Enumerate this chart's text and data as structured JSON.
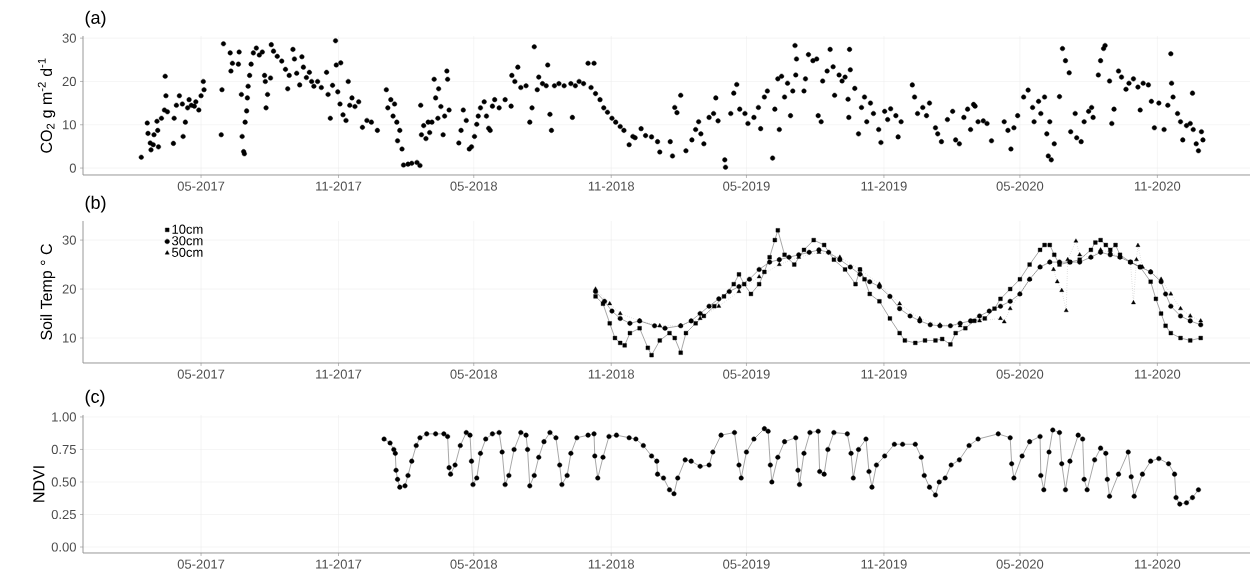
{
  "chart_data": [
    {
      "type": "scatter",
      "title": "(a)",
      "ylabel": "CO$_{2}$ g m$^{-2}$ d$^{-1}$",
      "marker": "circle",
      "color": "#000000",
      "grid": true,
      "xlim": [
        "2016-11-24",
        "2021-03-05"
      ],
      "xticks": [
        {
          "value": "2017-05-01",
          "label": "05-2017"
        },
        {
          "value": "2017-11-01",
          "label": "11-2017"
        },
        {
          "value": "2018-05-01",
          "label": "05-2018"
        },
        {
          "value": "2018-11-01",
          "label": "11-2018"
        },
        {
          "value": "2019-05-01",
          "label": "05-2019"
        },
        {
          "value": "2019-11-01",
          "label": "11-2019"
        },
        {
          "value": "2020-05-01",
          "label": "05-2020"
        },
        {
          "value": "2020-11-01",
          "label": "11-2020"
        }
      ],
      "ylim": [
        -1.6,
        30.5
      ],
      "yticks": [
        0,
        10,
        20,
        30
      ],
      "x": [
        "2017-02-10",
        "2017-02-18",
        "2017-02-19",
        "2017-02-22",
        "2017-02-23",
        "2017-02-26",
        "2017-02-27",
        "2017-03-03",
        "2017-03-04",
        "2017-03-05",
        "2017-03-09",
        "2017-03-13",
        "2017-03-14",
        "2017-03-15",
        "2017-03-17",
        "2017-03-25",
        "2017-03-26",
        "2017-03-29",
        "2017-04-02",
        "2017-04-06",
        "2017-04-07",
        "2017-04-10",
        "2017-04-13",
        "2017-04-15",
        "2017-04-18",
        "2017-04-22",
        "2017-04-24",
        "2017-04-28",
        "2017-05-01",
        "2017-05-04",
        "2017-05-05",
        "2017-05-28",
        "2017-05-29",
        "2017-05-31",
        "2017-06-09",
        "2017-06-10",
        "2017-06-12",
        "2017-06-20",
        "2017-06-21",
        "2017-06-24",
        "2017-06-25",
        "2017-06-27",
        "2017-06-28",
        "2017-06-29",
        "2017-07-01",
        "2017-07-02",
        "2017-07-03",
        "2017-07-05",
        "2017-07-07",
        "2017-07-10",
        "2017-07-14",
        "2017-07-18",
        "2017-07-22",
        "2017-07-25",
        "2017-07-26",
        "2017-07-27",
        "2017-07-29",
        "2017-08-02",
        "2017-08-03",
        "2017-08-06",
        "2017-08-11",
        "2017-08-17",
        "2017-08-22",
        "2017-08-25",
        "2017-08-27",
        "2017-09-01",
        "2017-09-03",
        "2017-09-06",
        "2017-09-10",
        "2017-09-13",
        "2017-09-15",
        "2017-09-19",
        "2017-09-23",
        "2017-09-26",
        "2017-09-29",
        "2017-10-04",
        "2017-10-09",
        "2017-10-16",
        "2017-10-18",
        "2017-10-21",
        "2017-10-24",
        "2017-10-28",
        "2017-10-29",
        "2017-10-31",
        "2017-11-03",
        "2017-11-04",
        "2017-11-07",
        "2017-11-11",
        "2017-11-14",
        "2017-11-16",
        "2017-11-19",
        "2017-11-23",
        "2017-11-28",
        "2017-12-03",
        "2017-12-09",
        "2017-12-15",
        "2017-12-23",
        "2018-01-04",
        "2018-01-06",
        "2018-01-10",
        "2018-01-13",
        "2018-01-15",
        "2018-01-18",
        "2018-01-19",
        "2018-01-22",
        "2018-01-25",
        "2018-01-27",
        "2018-02-02",
        "2018-02-07",
        "2018-02-14",
        "2018-02-18",
        "2018-02-19",
        "2018-02-20",
        "2018-02-23",
        "2018-02-26",
        "2018-03-01",
        "2018-03-03",
        "2018-03-06",
        "2018-03-09",
        "2018-03-11",
        "2018-03-14",
        "2018-03-15",
        "2018-03-18",
        "2018-03-21",
        "2018-03-23",
        "2018-03-26",
        "2018-03-27",
        "2018-03-29",
        "2018-04-11",
        "2018-04-14",
        "2018-04-17",
        "2018-04-21",
        "2018-04-25",
        "2018-04-28",
        "2018-05-02",
        "2018-05-05",
        "2018-05-07",
        "2018-05-10",
        "2018-05-15",
        "2018-05-18",
        "2018-05-21",
        "2018-05-23",
        "2018-05-26",
        "2018-05-29",
        "2018-06-04",
        "2018-06-12",
        "2018-06-20",
        "2018-06-21",
        "2018-06-25",
        "2018-06-29",
        "2018-07-03",
        "2018-07-10",
        "2018-07-15",
        "2018-07-18",
        "2018-07-21",
        "2018-07-25",
        "2018-07-27",
        "2018-08-01",
        "2018-08-06",
        "2018-08-08",
        "2018-08-11",
        "2018-08-13",
        "2018-08-17",
        "2018-08-23",
        "2018-08-30",
        "2018-09-08",
        "2018-09-10",
        "2018-09-14",
        "2018-09-19",
        "2018-09-25",
        "2018-10-01",
        "2018-10-05",
        "2018-10-09",
        "2018-10-11",
        "2018-10-17",
        "2018-10-22",
        "2018-10-27",
        "2018-11-02",
        "2018-11-07",
        "2018-11-13",
        "2018-11-18",
        "2018-11-25",
        "2018-11-30",
        "2018-12-03",
        "2018-12-11",
        "2018-12-17",
        "2018-12-25",
        "2019-01-02",
        "2019-01-05",
        "2019-01-19",
        "2019-01-22",
        "2019-01-25",
        "2019-01-28",
        "2019-02-02",
        "2019-02-09",
        "2019-02-17",
        "2019-02-22",
        "2019-02-26",
        "2019-03-01",
        "2019-03-05",
        "2019-03-12",
        "2019-03-18",
        "2019-03-21",
        "2019-03-24",
        "2019-04-02",
        "2019-04-03",
        "2019-04-10",
        "2019-04-14",
        "2019-04-18",
        "2019-04-22",
        "2019-04-29",
        "2019-05-03",
        "2019-05-11",
        "2019-05-17",
        "2019-05-20",
        "2019-05-25",
        "2019-05-29",
        "2019-06-05",
        "2019-06-08",
        "2019-06-12",
        "2019-06-14",
        "2019-06-17",
        "2019-06-21",
        "2019-06-25",
        "2019-06-29",
        "2019-07-02",
        "2019-07-05",
        "2019-07-06",
        "2019-07-07",
        "2019-07-17",
        "2019-07-19",
        "2019-07-23",
        "2019-07-29",
        "2019-08-03",
        "2019-08-05",
        "2019-08-09",
        "2019-08-11",
        "2019-08-17",
        "2019-08-21",
        "2019-08-25",
        "2019-08-27",
        "2019-09-02",
        "2019-09-06",
        "2019-09-10",
        "2019-09-14",
        "2019-09-15",
        "2019-09-16",
        "2019-09-17",
        "2019-09-23",
        "2019-09-28",
        "2019-10-02",
        "2019-10-06",
        "2019-10-09",
        "2019-10-14",
        "2019-10-18",
        "2019-10-25",
        "2019-10-28",
        "2019-11-02",
        "2019-11-06",
        "2019-11-10",
        "2019-11-17",
        "2019-11-20",
        "2019-11-24",
        "2019-12-09",
        "2019-12-12",
        "2019-12-16",
        "2019-12-23",
        "2019-12-28",
        "2020-01-01",
        "2020-01-09",
        "2020-01-12",
        "2020-01-17",
        "2020-01-25",
        "2020-02-01",
        "2020-02-05",
        "2020-02-10",
        "2020-02-16",
        "2020-02-21",
        "2020-02-25",
        "2020-02-29",
        "2020-03-02",
        "2020-03-06",
        "2020-03-13",
        "2020-03-18",
        "2020-03-24",
        "2020-04-10",
        "2020-04-15",
        "2020-04-19",
        "2020-04-23",
        "2020-04-28",
        "2020-05-06",
        "2020-05-12",
        "2020-05-18",
        "2020-05-20",
        "2020-05-26",
        "2020-05-29",
        "2020-06-03",
        "2020-06-06",
        "2020-06-08",
        "2020-06-10",
        "2020-06-12",
        "2020-06-16",
        "2020-06-23",
        "2020-06-27",
        "2020-07-01",
        "2020-07-06",
        "2020-07-08",
        "2020-07-14",
        "2020-07-16",
        "2020-07-22",
        "2020-07-26",
        "2020-08-01",
        "2020-08-05",
        "2020-08-07",
        "2020-08-14",
        "2020-08-17",
        "2020-08-21",
        "2020-08-23",
        "2020-08-29",
        "2020-09-01",
        "2020-09-04",
        "2020-09-10",
        "2020-09-14",
        "2020-09-20",
        "2020-09-24",
        "2020-09-30",
        "2020-10-06",
        "2020-10-09",
        "2020-10-13",
        "2020-10-20",
        "2020-10-24",
        "2020-10-28",
        "2020-11-03",
        "2020-11-10",
        "2020-11-15",
        "2020-11-19",
        "2020-11-20",
        "2020-11-22",
        "2020-11-28",
        "2020-12-02",
        "2020-12-05",
        "2020-12-10",
        "2020-12-15",
        "2020-12-18",
        "2020-12-19",
        "2020-12-23",
        "2020-12-26",
        "2020-12-30",
        "2021-01-01"
      ],
      "values": [
        2.5,
        10.4,
        8,
        5.8,
        4.2,
        5.4,
        7.7,
        10.8,
        8.7,
        4.9,
        11.5,
        13.4,
        21.2,
        16.7,
        13,
        5.7,
        11.5,
        14.5,
        16.7,
        14.8,
        7.3,
        10.6,
        13.9,
        15.8,
        14.5,
        14.3,
        15.3,
        13.4,
        16.7,
        20,
        18.1,
        7.7,
        18.1,
        28.7,
        26.6,
        22.4,
        24.2,
        24,
        26.8,
        17,
        7.3,
        3.8,
        3.3,
        10.6,
        13.2,
        16.2,
        18.9,
        21.4,
        24,
        26.6,
        27.7,
        26.1,
        26.8,
        21.4,
        20,
        13.9,
        17,
        20.8,
        28.5,
        27,
        25.8,
        24.7,
        22.8,
        18.3,
        21.4,
        27.4,
        25.2,
        21.9,
        19.2,
        25.7,
        23.3,
        20.9,
        22.1,
        20,
        18.9,
        20,
        18.6,
        22.1,
        17,
        11.5,
        19.1,
        29.4,
        23.8,
        17.6,
        14.8,
        24.3,
        12.3,
        11,
        20,
        14.5,
        16.2,
        14.2,
        15.3,
        9.4,
        11,
        10.6,
        8.7,
        18.1,
        13.9,
        15.8,
        12,
        14.8,
        10.6,
        6.3,
        8.7,
        4.4,
        0.7,
        0.9,
        1.1,
        1.3,
        0.6,
        14.5,
        7.7,
        9.8,
        6.8,
        10.6,
        8.2,
        10.6,
        20.5,
        16.2,
        11.5,
        18.3,
        14.2,
        7.7,
        12,
        22.4,
        20.5,
        13.4,
        5.8,
        8.7,
        13.4,
        11,
        4.4,
        4.9,
        7.3,
        10.1,
        12,
        13.9,
        15.3,
        12,
        9.2,
        8.7,
        14.3,
        15.8,
        13.9,
        15.8,
        14.3,
        21.4,
        20,
        23.3,
        18.6,
        19,
        10.6,
        13.9,
        28,
        18.1,
        21,
        19.5,
        19,
        23.8,
        12.4,
        8.7,
        19,
        19.5,
        19,
        19.5,
        11.7,
        19,
        20,
        19.5,
        24.2,
        18.6,
        24.2,
        17.2,
        15.8,
        13.9,
        12.9,
        11.5,
        10.6,
        9.6,
        8.7,
        5.4,
        7.3,
        7,
        9.1,
        7.5,
        7.2,
        6.1,
        3.7,
        6.1,
        2.8,
        14,
        12.8,
        16.8,
        4,
        6.5,
        8.9,
        10.7,
        7.9,
        5.6,
        11.7,
        12.6,
        16.2,
        10.9,
        1.9,
        0.2,
        12.6,
        17.3,
        19.3,
        13.6,
        12.6,
        10.3,
        11.7,
        14,
        9.1,
        16.4,
        17.8,
        2.3,
        13.6,
        20.6,
        8.9,
        21.2,
        16.4,
        19.6,
        12.1,
        17.8,
        28.3,
        21.5,
        25.2,
        17.8,
        20.6,
        26.2,
        24.8,
        25.2,
        12.1,
        10.7,
        20.1,
        22.4,
        27.4,
        23.4,
        16.8,
        21.5,
        20.1,
        21,
        15.9,
        11.7,
        27.4,
        22.7,
        18.4,
        7.9,
        14,
        16.4,
        10.7,
        15,
        12.6,
        8.9,
        5.9,
        13.1,
        11.2,
        13.7,
        12.1,
        7.2,
        10.7,
        19.2,
        16.4,
        12.6,
        14,
        12.1,
        15,
        9.3,
        7.9,
        6.1,
        11.2,
        13.1,
        6.5,
        5.6,
        11.7,
        13.6,
        8.9,
        14.7,
        14.3,
        10.7,
        10.9,
        10.3,
        6.3,
        10.7,
        8.7,
        4.4,
        9.3,
        12.1,
        16.4,
        18,
        14,
        10.7,
        15.4,
        12.6,
        16.4,
        7.9,
        2.8,
        10.7,
        1.9,
        5.6,
        16.5,
        27.6,
        24.8,
        22,
        8.4,
        12.6,
        7,
        6.1,
        10.7,
        13.1,
        14,
        11.7,
        21.5,
        24.8,
        27.6,
        28.3,
        20.1,
        10.3,
        13.6,
        22.4,
        21,
        18.2,
        19.6,
        20.6,
        18.7,
        13.4,
        19.6,
        19.2,
        15.4,
        9.3,
        15,
        8.9,
        14.5,
        26.4,
        19.6,
        16.4,
        12.6,
        10.7,
        6.5,
        9.8,
        10.3,
        17.3,
        8.9,
        5.6,
        4,
        8.4,
        6.5
      ]
    },
    {
      "type": "line",
      "title": "(b)",
      "ylabel": "Soil Temp ° C",
      "grid": true,
      "legend": "top left",
      "xlim": [
        "2016-11-24",
        "2021-03-05"
      ],
      "xticks": [
        {
          "value": "2017-05-01",
          "label": "05-2017"
        },
        {
          "value": "2017-11-01",
          "label": "11-2017"
        },
        {
          "value": "2018-05-01",
          "label": "05-2018"
        },
        {
          "value": "2018-11-01",
          "label": "11-2018"
        },
        {
          "value": "2019-05-01",
          "label": "05-2019"
        },
        {
          "value": "2019-11-01",
          "label": "11-2019"
        },
        {
          "value": "2020-05-01",
          "label": "05-2020"
        },
        {
          "value": "2020-11-01",
          "label": "11-2020"
        }
      ],
      "ylim": [
        4.9,
        33.9
      ],
      "yticks": [
        10,
        20,
        30
      ],
      "series": [
        {
          "name": "10cm",
          "color": "#000000",
          "marker": "square",
          "line_style": "solid",
          "x": [
            "2018-10-11",
            "2018-10-21",
            "2018-10-30",
            "2018-11-06",
            "2018-11-13",
            "2018-11-19",
            "2018-11-26",
            "2018-12-09",
            "2018-12-20",
            "2018-12-25",
            "2019-01-05",
            "2019-01-18",
            "2019-01-25",
            "2019-02-02",
            "2019-02-09",
            "2019-02-22",
            "2019-03-05",
            "2019-03-19",
            "2019-04-01",
            "2019-04-14",
            "2019-04-21",
            "2019-04-28",
            "2019-05-07",
            "2019-05-18",
            "2019-05-25",
            "2019-06-01",
            "2019-06-08",
            "2019-06-12",
            "2019-06-21",
            "2019-07-04",
            "2019-07-17",
            "2019-07-30",
            "2019-08-13",
            "2019-08-26",
            "2019-09-10",
            "2019-09-24",
            "2019-09-30",
            "2019-10-06",
            "2019-10-13",
            "2019-10-26",
            "2019-11-09",
            "2019-11-22",
            "2019-11-29",
            "2019-12-13",
            "2019-12-26",
            "2020-01-09",
            "2020-01-18",
            "2020-01-29",
            "2020-02-05",
            "2020-02-18",
            "2020-03-01",
            "2020-03-15",
            "2020-03-28",
            "2020-04-05",
            "2020-04-18",
            "2020-05-01",
            "2020-05-14",
            "2020-05-28",
            "2020-06-03",
            "2020-06-10",
            "2020-06-16",
            "2020-06-23",
            "2020-07-07",
            "2020-07-20",
            "2020-08-04",
            "2020-08-10",
            "2020-08-17",
            "2020-08-24",
            "2020-08-30",
            "2020-09-06",
            "2020-09-12",
            "2020-09-26",
            "2020-10-09",
            "2020-10-23",
            "2020-10-30",
            "2020-11-06",
            "2020-11-12",
            "2020-11-19",
            "2020-12-02",
            "2020-12-15",
            "2020-12-29"
          ],
          "values": [
            18.5,
            17,
            13,
            10,
            9,
            8.5,
            11,
            12,
            8,
            6.5,
            9.5,
            11,
            10,
            7,
            11,
            13,
            14.5,
            16.5,
            18.5,
            21,
            23,
            21,
            19,
            21,
            23.5,
            26.5,
            30,
            32,
            27,
            25,
            28,
            30,
            29,
            26,
            24,
            21,
            24,
            22,
            19,
            17.5,
            14,
            11,
            9.5,
            9,
            9.5,
            9.5,
            9.8,
            8.7,
            11,
            12,
            13.5,
            14,
            16,
            18,
            20,
            22,
            25,
            28,
            29,
            29,
            27,
            25,
            25.5,
            26,
            28,
            29.5,
            30,
            29,
            28,
            29,
            27,
            25.5,
            24.5,
            21.5,
            18,
            15,
            12.5,
            11,
            10,
            9.5,
            10
          ]
        },
        {
          "name": "30cm",
          "color": "#000000",
          "marker": "circle",
          "line_style": "solid",
          "x": [
            "2018-10-11",
            "2018-10-23",
            "2018-11-02",
            "2018-11-13",
            "2018-11-26",
            "2018-12-09",
            "2018-12-29",
            "2019-01-12",
            "2019-02-02",
            "2019-02-16",
            "2019-02-28",
            "2019-03-12",
            "2019-03-25",
            "2019-04-08",
            "2019-04-21",
            "2019-05-05",
            "2019-05-18",
            "2019-06-01",
            "2019-06-14",
            "2019-06-27",
            "2019-07-10",
            "2019-07-24",
            "2019-08-06",
            "2019-08-19",
            "2019-09-03",
            "2019-09-17",
            "2019-09-30",
            "2019-10-13",
            "2019-10-26",
            "2019-11-09",
            "2019-11-22",
            "2019-12-06",
            "2019-12-19",
            "2020-01-02",
            "2020-01-15",
            "2020-01-29",
            "2020-02-11",
            "2020-02-25",
            "2020-03-08",
            "2020-03-21",
            "2020-04-05",
            "2020-04-18",
            "2020-05-01",
            "2020-05-14",
            "2020-05-28",
            "2020-06-10",
            "2020-06-23",
            "2020-07-07",
            "2020-07-20",
            "2020-08-04",
            "2020-08-17",
            "2020-08-30",
            "2020-09-12",
            "2020-09-26",
            "2020-10-09",
            "2020-10-23",
            "2020-11-06",
            "2020-11-12",
            "2020-11-19",
            "2020-12-02",
            "2020-12-15",
            "2020-12-29"
          ],
          "values": [
            19.5,
            17.5,
            15.5,
            14,
            13,
            13.5,
            12.5,
            12,
            12.5,
            13.5,
            15,
            16.5,
            18,
            19.5,
            20.5,
            22,
            24,
            25.5,
            26,
            26.5,
            27,
            27.5,
            28,
            27.5,
            26,
            24.5,
            23,
            21.5,
            20.5,
            18.5,
            16,
            14.5,
            13.5,
            12.7,
            12.5,
            12.5,
            13,
            13.5,
            14.5,
            15.5,
            16.5,
            17.5,
            19,
            22,
            24.5,
            25.5,
            25.5,
            25.5,
            25.5,
            26.5,
            27.5,
            27,
            26.5,
            25.5,
            24.5,
            23.5,
            21.5,
            19,
            16.5,
            14.5,
            13.5,
            12.7
          ]
        },
        {
          "name": "50cm",
          "color": "#000000",
          "marker": "triangle",
          "line_style": "dotted",
          "x": [
            "2018-10-11",
            "2018-10-30",
            "2018-11-13",
            "2018-12-09",
            "2019-01-05",
            "2019-02-02",
            "2019-02-28",
            "2019-03-25",
            "2019-04-21",
            "2019-05-18",
            "2019-06-14",
            "2019-07-10",
            "2019-08-06",
            "2019-09-03",
            "2019-09-30",
            "2019-10-26",
            "2019-11-22",
            "2019-12-19",
            "2020-01-15",
            "2020-02-11",
            "2020-03-08",
            "2020-04-05",
            "2020-04-10",
            "2020-04-18",
            "2020-05-01",
            "2020-05-14",
            "2020-05-28",
            "2020-06-10",
            "2020-06-15",
            "2020-06-20",
            "2020-06-26",
            "2020-07-02",
            "2020-07-04",
            "2020-07-15",
            "2020-07-20",
            "2020-08-04",
            "2020-08-17",
            "2020-08-30",
            "2020-09-12",
            "2020-09-26",
            "2020-09-30",
            "2020-10-04",
            "2020-10-06",
            "2020-10-12",
            "2020-10-23",
            "2020-11-06",
            "2020-11-19",
            "2020-12-02",
            "2020-12-15",
            "2020-12-29"
          ],
          "values": [
            20,
            17,
            15,
            13.5,
            12.5,
            12.5,
            14,
            16.5,
            19.5,
            22.5,
            25,
            26.5,
            27.5,
            26.5,
            24,
            21,
            17,
            14,
            12.7,
            12.5,
            13.5,
            14,
            13.3,
            16,
            19,
            22,
            24.5,
            25.5,
            24,
            21.5,
            19.7,
            15.6,
            26,
            29.8,
            27,
            26.5,
            28,
            27.5,
            26.5,
            25.5,
            17.2,
            26,
            28.9,
            24.5,
            23.5,
            22,
            19,
            16,
            14.5,
            13.5
          ]
        }
      ]
    },
    {
      "type": "line",
      "title": "(c)",
      "ylabel": "NDVI",
      "marker": "circle",
      "color": "#000000",
      "grid": true,
      "xlim": [
        "2016-11-24",
        "2021-03-05"
      ],
      "xticks": [
        {
          "value": "2017-05-01",
          "label": "05-2017"
        },
        {
          "value": "2017-11-01",
          "label": "11-2017"
        },
        {
          "value": "2018-05-01",
          "label": "05-2018"
        },
        {
          "value": "2018-11-01",
          "label": "11-2018"
        },
        {
          "value": "2019-05-01",
          "label": "05-2019"
        },
        {
          "value": "2019-11-01",
          "label": "11-2019"
        },
        {
          "value": "2020-05-01",
          "label": "05-2020"
        },
        {
          "value": "2020-11-01",
          "label": "11-2020"
        }
      ],
      "ylim": [
        -0.046,
        1.015
      ],
      "yticks": [
        {
          "value": 0,
          "label": "0.00"
        },
        {
          "value": 0.25,
          "label": "0.25"
        },
        {
          "value": 0.5,
          "label": "0.50"
        },
        {
          "value": 0.75,
          "label": "0.75"
        },
        {
          "value": 1,
          "label": "1.00"
        }
      ],
      "x": [
        "2018-01-01",
        "2018-01-09",
        "2018-01-14",
        "2018-01-16",
        "2018-01-17",
        "2018-01-19",
        "2018-01-22",
        "2018-01-29",
        "2018-02-02",
        "2018-02-07",
        "2018-02-13",
        "2018-02-18",
        "2018-02-27",
        "2018-03-11",
        "2018-03-22",
        "2018-03-27",
        "2018-03-29",
        "2018-03-31",
        "2018-04-06",
        "2018-04-13",
        "2018-04-21",
        "2018-04-26",
        "2018-04-28",
        "2018-04-30",
        "2018-05-05",
        "2018-05-10",
        "2018-05-17",
        "2018-05-26",
        "2018-06-04",
        "2018-06-08",
        "2018-06-12",
        "2018-06-17",
        "2018-06-24",
        "2018-07-03",
        "2018-07-10",
        "2018-07-12",
        "2018-07-15",
        "2018-07-21",
        "2018-07-27",
        "2018-08-03",
        "2018-08-11",
        "2018-08-19",
        "2018-08-24",
        "2018-08-27",
        "2018-09-03",
        "2018-09-08",
        "2018-09-16",
        "2018-10-01",
        "2018-10-09",
        "2018-10-10",
        "2018-10-14",
        "2018-10-21",
        "2018-10-29",
        "2018-11-08",
        "2018-11-25",
        "2018-12-04",
        "2018-12-14",
        "2018-12-25",
        "2019-01-01",
        "2019-01-02",
        "2019-01-10",
        "2019-01-18",
        "2019-01-24",
        "2019-01-29",
        "2019-02-08",
        "2019-02-16",
        "2019-02-28",
        "2019-03-12",
        "2019-03-17",
        "2019-03-28",
        "2019-04-15",
        "2019-04-21",
        "2019-04-24",
        "2019-05-01",
        "2019-05-11",
        "2019-05-25",
        "2019-05-30",
        "2019-06-02",
        "2019-06-04",
        "2019-06-12",
        "2019-06-21",
        "2019-07-06",
        "2019-07-09",
        "2019-07-11",
        "2019-07-17",
        "2019-07-25",
        "2019-08-05",
        "2019-08-07",
        "2019-08-13",
        "2019-08-18",
        "2019-08-26",
        "2019-09-13",
        "2019-09-18",
        "2019-09-21",
        "2019-09-28",
        "2019-10-08",
        "2019-10-12",
        "2019-10-16",
        "2019-10-22",
        "2019-11-02",
        "2019-11-15",
        "2019-11-26",
        "2019-12-13",
        "2019-12-21",
        "2019-12-25",
        "2020-01-01",
        "2020-01-09",
        "2020-01-14",
        "2020-01-22",
        "2020-01-30",
        "2020-02-10",
        "2020-02-23",
        "2020-03-06",
        "2020-04-02",
        "2020-04-18",
        "2020-04-20",
        "2020-04-23",
        "2020-05-04",
        "2020-05-14",
        "2020-05-28",
        "2020-05-29",
        "2020-06-02",
        "2020-06-09",
        "2020-06-14",
        "2020-06-23",
        "2020-06-26",
        "2020-07-01",
        "2020-07-07",
        "2020-07-18",
        "2020-07-24",
        "2020-07-26",
        "2020-07-30",
        "2020-08-09",
        "2020-08-17",
        "2020-08-24",
        "2020-08-26",
        "2020-08-29",
        "2020-09-10",
        "2020-09-23",
        "2020-09-27",
        "2020-10-01",
        "2020-10-12",
        "2020-10-23",
        "2020-11-03",
        "2020-11-16",
        "2020-11-24",
        "2020-11-26",
        "2020-12-01",
        "2020-12-10",
        "2020-12-18",
        "2020-12-26"
      ],
      "values": [
        0.83,
        0.8,
        0.75,
        0.72,
        0.59,
        0.52,
        0.46,
        0.47,
        0.55,
        0.66,
        0.78,
        0.84,
        0.87,
        0.87,
        0.87,
        0.85,
        0.61,
        0.56,
        0.63,
        0.78,
        0.88,
        0.86,
        0.66,
        0.48,
        0.53,
        0.72,
        0.83,
        0.87,
        0.88,
        0.73,
        0.48,
        0.55,
        0.75,
        0.88,
        0.86,
        0.75,
        0.47,
        0.55,
        0.69,
        0.81,
        0.88,
        0.84,
        0.63,
        0.48,
        0.55,
        0.72,
        0.84,
        0.86,
        0.87,
        0.7,
        0.53,
        0.69,
        0.85,
        0.86,
        0.84,
        0.83,
        0.78,
        0.7,
        0.66,
        0.56,
        0.53,
        0.44,
        0.41,
        0.53,
        0.67,
        0.66,
        0.62,
        0.63,
        0.73,
        0.86,
        0.88,
        0.63,
        0.53,
        0.73,
        0.83,
        0.91,
        0.89,
        0.63,
        0.5,
        0.69,
        0.81,
        0.84,
        0.59,
        0.48,
        0.72,
        0.88,
        0.89,
        0.58,
        0.56,
        0.75,
        0.88,
        0.87,
        0.72,
        0.53,
        0.75,
        0.83,
        0.58,
        0.46,
        0.63,
        0.7,
        0.79,
        0.79,
        0.79,
        0.69,
        0.55,
        0.46,
        0.4,
        0.5,
        0.53,
        0.63,
        0.67,
        0.78,
        0.83,
        0.87,
        0.84,
        0.64,
        0.53,
        0.7,
        0.81,
        0.85,
        0.55,
        0.44,
        0.73,
        0.9,
        0.88,
        0.64,
        0.44,
        0.66,
        0.86,
        0.83,
        0.52,
        0.44,
        0.67,
        0.76,
        0.72,
        0.52,
        0.39,
        0.56,
        0.73,
        0.54,
        0.39,
        0.56,
        0.66,
        0.68,
        0.64,
        0.56,
        0.38,
        0.33,
        0.34,
        0.38,
        0.44
      ]
    }
  ]
}
